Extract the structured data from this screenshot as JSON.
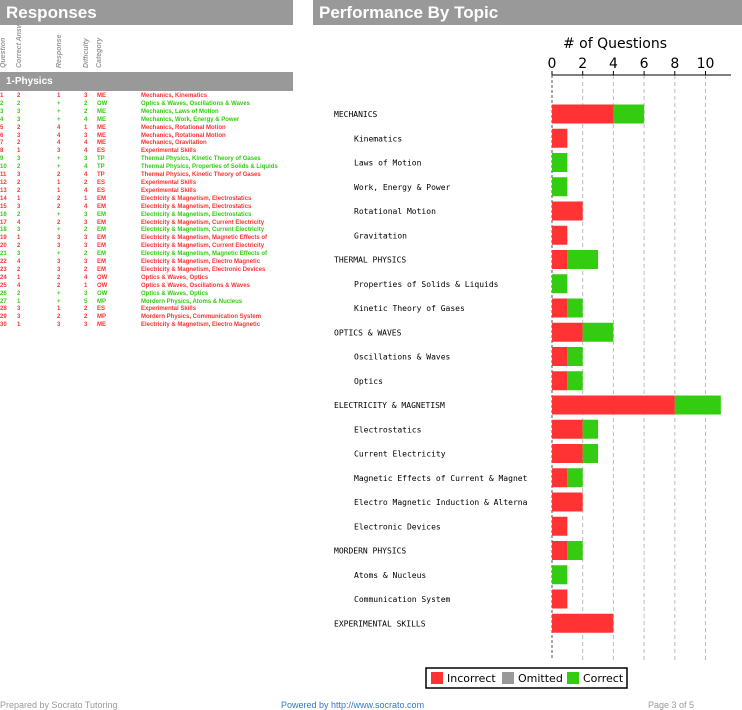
{
  "responses": {
    "title": "Responses",
    "column_headers": [
      "Question",
      "Correct Answer",
      "Response",
      "Difficulty",
      "Category"
    ],
    "section": "1-Physics",
    "rows": [
      {
        "q": "1",
        "ca": "2",
        "r": "1",
        "d": "3",
        "cat": "ME",
        "topic": "Mechanics, Kinematics",
        "ok": false
      },
      {
        "q": "2",
        "ca": "2",
        "r": "+",
        "d": "2",
        "cat": "OW",
        "topic": "Optics & Waves, Oscillations & Waves",
        "ok": true
      },
      {
        "q": "3",
        "ca": "3",
        "r": "+",
        "d": "2",
        "cat": "ME",
        "topic": "Mechanics, Laws of Motion",
        "ok": true
      },
      {
        "q": "4",
        "ca": "3",
        "r": "+",
        "d": "4",
        "cat": "ME",
        "topic": "Mechanics, Work, Energy & Power",
        "ok": true
      },
      {
        "q": "5",
        "ca": "2",
        "r": "4",
        "d": "1",
        "cat": "ME",
        "topic": "Mechanics, Rotational Motion",
        "ok": false
      },
      {
        "q": "6",
        "ca": "3",
        "r": "4",
        "d": "3",
        "cat": "ME",
        "topic": "Mechanics, Rotational Motion",
        "ok": false
      },
      {
        "q": "7",
        "ca": "2",
        "r": "4",
        "d": "4",
        "cat": "ME",
        "topic": "Mechanics, Gravitation",
        "ok": false
      },
      {
        "q": "8",
        "ca": "1",
        "r": "3",
        "d": "4",
        "cat": "ES",
        "topic": "Experimental Skills",
        "ok": false
      },
      {
        "q": "9",
        "ca": "3",
        "r": "+",
        "d": "3",
        "cat": "TP",
        "topic": "Thermal Physics, Kinetic Theory of Gases",
        "ok": true
      },
      {
        "q": "10",
        "ca": "2",
        "r": "+",
        "d": "4",
        "cat": "TP",
        "topic": "Thermal Physics, Properties of Solids & Liquids",
        "ok": true
      },
      {
        "q": "11",
        "ca": "3",
        "r": "2",
        "d": "4",
        "cat": "TP",
        "topic": "Thermal Physics, Kinetic Theory of Gases",
        "ok": false
      },
      {
        "q": "12",
        "ca": "2",
        "r": "1",
        "d": "2",
        "cat": "ES",
        "topic": "Experimental Skills",
        "ok": false
      },
      {
        "q": "13",
        "ca": "2",
        "r": "1",
        "d": "4",
        "cat": "ES",
        "topic": "Experimental Skills",
        "ok": false
      },
      {
        "q": "14",
        "ca": "1",
        "r": "2",
        "d": "1",
        "cat": "EM",
        "topic": "Electricity & Magnetism, Electrostatics",
        "ok": false
      },
      {
        "q": "15",
        "ca": "3",
        "r": "2",
        "d": "4",
        "cat": "EM",
        "topic": "Electricity & Magnetism, Electrostatics",
        "ok": false
      },
      {
        "q": "16",
        "ca": "2",
        "r": "+",
        "d": "3",
        "cat": "EM",
        "topic": "Electricity & Magnetism, Electrostatics",
        "ok": true
      },
      {
        "q": "17",
        "ca": "4",
        "r": "2",
        "d": "3",
        "cat": "EM",
        "topic": "Electricity & Magnetism, Current Electricity",
        "ok": false
      },
      {
        "q": "18",
        "ca": "3",
        "r": "+",
        "d": "2",
        "cat": "EM",
        "topic": "Electricity & Magnetism, Current Electricity",
        "ok": true
      },
      {
        "q": "19",
        "ca": "1",
        "r": "3",
        "d": "3",
        "cat": "EM",
        "topic": "Electricity & Magnetism, Magnetic Effects of",
        "ok": false
      },
      {
        "q": "20",
        "ca": "2",
        "r": "3",
        "d": "3",
        "cat": "EM",
        "topic": "Electricity & Magnetism, Current Electricity",
        "ok": false
      },
      {
        "q": "21",
        "ca": "3",
        "r": "+",
        "d": "2",
        "cat": "EM",
        "topic": "Electricity & Magnetism, Magnetic Effects of",
        "ok": true
      },
      {
        "q": "22",
        "ca": "4",
        "r": "3",
        "d": "3",
        "cat": "EM",
        "topic": "Electricity & Magnetism, Electro Magnetic",
        "ok": false
      },
      {
        "q": "23",
        "ca": "2",
        "r": "3",
        "d": "2",
        "cat": "EM",
        "topic": "Electricity & Magnetism, Electronic Devices",
        "ok": false
      },
      {
        "q": "24",
        "ca": "1",
        "r": "2",
        "d": "4",
        "cat": "OW",
        "topic": "Optics & Waves, Optics",
        "ok": false
      },
      {
        "q": "25",
        "ca": "4",
        "r": "2",
        "d": "1",
        "cat": "OW",
        "topic": "Optics & Waves, Oscillations & Waves",
        "ok": false
      },
      {
        "q": "26",
        "ca": "2",
        "r": "+",
        "d": "3",
        "cat": "OW",
        "topic": "Optics & Waves, Optics",
        "ok": true
      },
      {
        "q": "27",
        "ca": "1",
        "r": "+",
        "d": "5",
        "cat": "MP",
        "topic": "Mordern Physics, Atoms & Nucleus",
        "ok": true
      },
      {
        "q": "28",
        "ca": "3",
        "r": "1",
        "d": "2",
        "cat": "ES",
        "topic": "Experimental Skills",
        "ok": false
      },
      {
        "q": "29",
        "ca": "3",
        "r": "2",
        "d": "2",
        "cat": "MP",
        "topic": "Mordern Physics, Communication System",
        "ok": false
      },
      {
        "q": "30",
        "ca": "1",
        "r": "3",
        "d": "3",
        "cat": "ME",
        "topic": "Electricity & Magnetism, Electro Magnetic",
        "ok": false
      }
    ]
  },
  "performance": {
    "title": "Performance By Topic"
  },
  "chart_data": {
    "type": "bar",
    "orientation": "horizontal",
    "stacked": true,
    "title": "# of Questions",
    "xlim": [
      0,
      11
    ],
    "xticks": [
      0,
      2,
      4,
      6,
      8,
      10
    ],
    "categories": [
      {
        "label": "MECHANICS",
        "indent": 0
      },
      {
        "label": "Kinematics",
        "indent": 1
      },
      {
        "label": "Laws of Motion",
        "indent": 1
      },
      {
        "label": "Work, Energy & Power",
        "indent": 1
      },
      {
        "label": "Rotational Motion",
        "indent": 1
      },
      {
        "label": "Gravitation",
        "indent": 1
      },
      {
        "label": "THERMAL PHYSICS",
        "indent": 0
      },
      {
        "label": "Properties of Solids & Liquids",
        "indent": 1
      },
      {
        "label": "Kinetic Theory of Gases",
        "indent": 1
      },
      {
        "label": "OPTICS & WAVES",
        "indent": 0
      },
      {
        "label": "Oscillations & Waves",
        "indent": 1
      },
      {
        "label": "Optics",
        "indent": 1
      },
      {
        "label": "ELECTRICITY & MAGNETISM",
        "indent": 0
      },
      {
        "label": "Electrostatics",
        "indent": 1
      },
      {
        "label": "Current Electricity",
        "indent": 1
      },
      {
        "label": "Magnetic Effects of Current & Magnet",
        "indent": 1
      },
      {
        "label": "Electro Magnetic Induction & Alterna",
        "indent": 1
      },
      {
        "label": "Electronic Devices",
        "indent": 1
      },
      {
        "label": "MORDERN PHYSICS",
        "indent": 0
      },
      {
        "label": "Atoms & Nucleus",
        "indent": 1
      },
      {
        "label": "Communication System",
        "indent": 1
      },
      {
        "label": "EXPERIMENTAL SKILLS",
        "indent": 0
      }
    ],
    "series": [
      {
        "name": "Incorrect",
        "color": "#ff3333",
        "values": [
          4,
          1,
          0,
          0,
          2,
          1,
          1,
          0,
          1,
          2,
          1,
          1,
          8,
          2,
          2,
          1,
          2,
          1,
          1,
          0,
          1,
          4
        ]
      },
      {
        "name": "Omitted",
        "color": "#999999",
        "values": [
          0,
          0,
          0,
          0,
          0,
          0,
          0,
          0,
          0,
          0,
          0,
          0,
          0,
          0,
          0,
          0,
          0,
          0,
          0,
          0,
          0,
          0
        ]
      },
      {
        "name": "Correct",
        "color": "#33cc11",
        "values": [
          2,
          0,
          1,
          1,
          0,
          0,
          2,
          1,
          1,
          2,
          1,
          1,
          3,
          1,
          1,
          1,
          0,
          0,
          1,
          1,
          0,
          0
        ]
      }
    ]
  },
  "footer": {
    "left": "Prepared by Socrato Tutoring",
    "mid": "Powered by http://www.socrato.com",
    "right": "Page 3 of 5"
  }
}
